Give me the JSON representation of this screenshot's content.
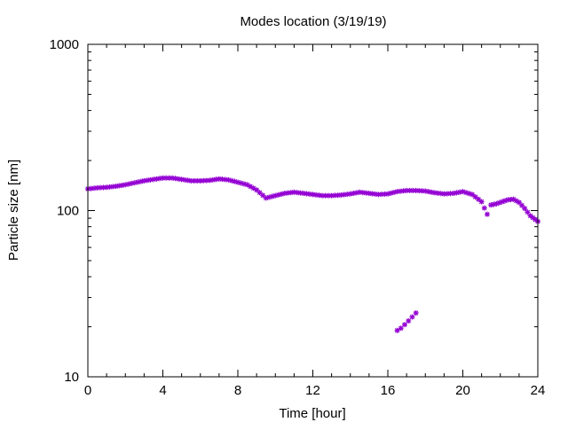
{
  "chart_data": {
    "type": "scatter",
    "title": "Modes location (3/19/19)",
    "xlabel": "Time [hour]",
    "ylabel": "Particle size [nm]",
    "xlim": [
      0,
      24
    ],
    "ylim": [
      10,
      1000
    ],
    "yscale": "log",
    "grid": false,
    "legend": "none",
    "x_ticks": [
      0,
      4,
      8,
      12,
      16,
      20,
      24
    ],
    "x_tick_labels": [
      "0",
      "4",
      "8",
      "12",
      "16",
      "20",
      "24"
    ],
    "y_ticks": [
      10,
      100,
      1000
    ],
    "y_tick_labels": [
      "10",
      "100",
      "1000"
    ],
    "marker_color": "#9400d3",
    "series": [
      {
        "x": [
          0,
          0.5,
          1,
          1.5,
          2,
          2.5,
          3,
          3.5,
          4,
          4.5,
          5,
          5.5,
          6,
          6.5,
          7,
          7.5,
          8,
          8.5,
          9,
          9.5,
          10,
          10.5,
          11,
          11.5,
          12,
          12.5,
          13,
          13.5,
          14,
          14.5,
          15,
          15.5,
          16,
          16.5,
          17,
          17.5,
          18,
          18.5,
          19,
          19.5,
          20,
          20.5,
          21,
          21.3
        ],
        "y": [
          135,
          137,
          138,
          140,
          143,
          147,
          151,
          154,
          157,
          157,
          154,
          151,
          151,
          152,
          155,
          153,
          148,
          143,
          133,
          119,
          123,
          127,
          129,
          127,
          125,
          123,
          123,
          124,
          126,
          129,
          127,
          125,
          126,
          130,
          132,
          132,
          131,
          128,
          126,
          127,
          130,
          125,
          113,
          95
        ]
      },
      {
        "x": [
          16.5,
          16.7,
          16.9,
          17.1,
          17.3,
          17.5
        ],
        "y": [
          19,
          19.6,
          20.6,
          21.7,
          22.9,
          24.2
        ]
      },
      {
        "x": [
          21.5,
          21.8,
          22.1,
          22.4,
          22.7,
          23,
          23.3,
          23.6,
          24
        ],
        "y": [
          108,
          110,
          113,
          116,
          117,
          112,
          103,
          93,
          86
        ]
      }
    ]
  }
}
